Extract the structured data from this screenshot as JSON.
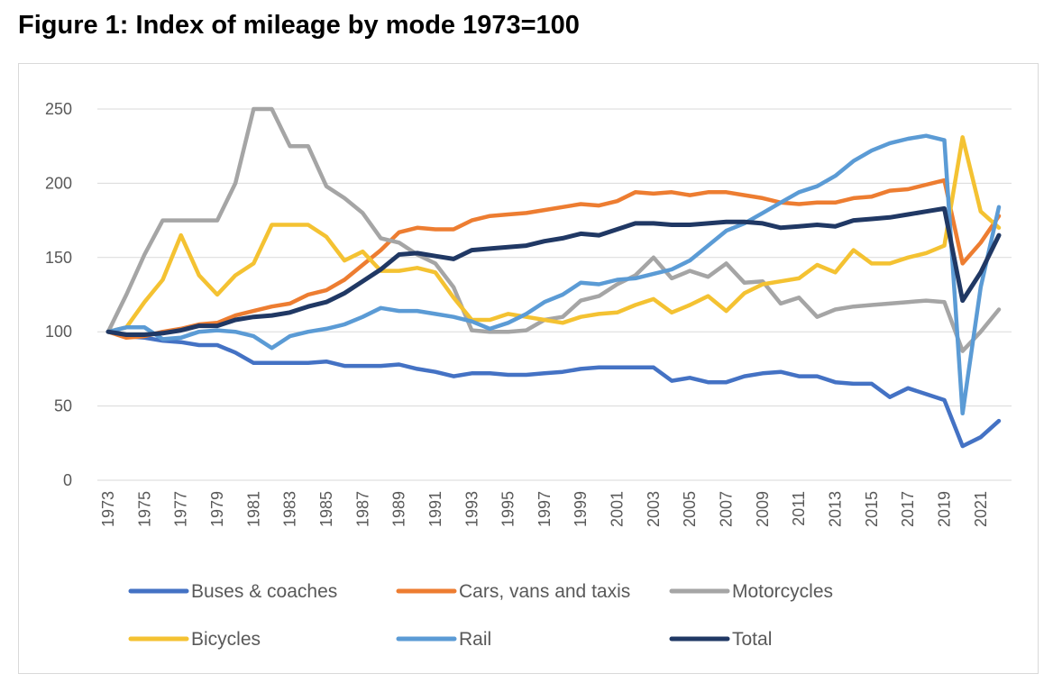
{
  "chart_data": {
    "type": "line",
    "title": "Figure 1: Index of mileage by mode 1973=100",
    "xlabel": "",
    "ylabel": "",
    "ylim": [
      0,
      250
    ],
    "yticks": [
      0,
      50,
      100,
      150,
      200,
      250
    ],
    "grid": "horizontal",
    "legend_position": "bottom",
    "x": [
      1973,
      1974,
      1975,
      1976,
      1977,
      1978,
      1979,
      1980,
      1981,
      1982,
      1983,
      1984,
      1985,
      1986,
      1987,
      1988,
      1989,
      1990,
      1991,
      1992,
      1993,
      1994,
      1995,
      1996,
      1997,
      1998,
      1999,
      2000,
      2001,
      2002,
      2003,
      2004,
      2005,
      2006,
      2007,
      2008,
      2009,
      2010,
      2011,
      2012,
      2013,
      2014,
      2015,
      2016,
      2017,
      2018,
      2019,
      2020,
      2021,
      2022
    ],
    "xticks": [
      "1973",
      "1975",
      "1977",
      "1979",
      "1981",
      "1983",
      "1985",
      "1987",
      "1989",
      "1991",
      "1993",
      "1995",
      "1997",
      "1999",
      "2001",
      "2003",
      "2005",
      "2007",
      "2009",
      "2011",
      "2013",
      "2015",
      "2017",
      "2019",
      "2021"
    ],
    "series": [
      {
        "name": "Buses & coaches",
        "color": "#4472C4",
        "values": [
          100,
          97,
          96,
          94,
          93,
          91,
          91,
          86,
          79,
          79,
          79,
          79,
          80,
          77,
          77,
          77,
          78,
          75,
          73,
          70,
          72,
          72,
          71,
          71,
          72,
          73,
          75,
          76,
          76,
          76,
          76,
          67,
          69,
          66,
          66,
          70,
          72,
          73,
          70,
          70,
          66,
          65,
          65,
          56,
          62,
          58,
          54,
          23,
          29,
          40
        ]
      },
      {
        "name": "Cars, vans and taxis",
        "color": "#ED7D31",
        "values": [
          100,
          96,
          97,
          100,
          102,
          105,
          106,
          111,
          114,
          117,
          119,
          125,
          128,
          135,
          145,
          155,
          167,
          170,
          169,
          169,
          175,
          178,
          179,
          180,
          182,
          184,
          186,
          185,
          188,
          194,
          193,
          194,
          192,
          194,
          194,
          192,
          190,
          187,
          186,
          187,
          187,
          190,
          191,
          195,
          196,
          199,
          202,
          146,
          160,
          178
        ]
      },
      {
        "name": "Motorcycles",
        "color": "#A5A5A5",
        "values": [
          100,
          125,
          152,
          175,
          175,
          175,
          175,
          200,
          250,
          250,
          225,
          225,
          198,
          190,
          180,
          163,
          160,
          152,
          146,
          130,
          101,
          100,
          100,
          101,
          108,
          110,
          121,
          124,
          132,
          138,
          150,
          136,
          141,
          137,
          146,
          133,
          134,
          119,
          123,
          110,
          115,
          117,
          118,
          119,
          120,
          121,
          120,
          87,
          100,
          115
        ]
      },
      {
        "name": "Bicycles",
        "color": "#F4C232",
        "values": [
          100,
          103,
          120,
          135,
          165,
          138,
          125,
          138,
          146,
          172,
          172,
          172,
          164,
          148,
          154,
          141,
          141,
          143,
          140,
          123,
          108,
          108,
          112,
          110,
          108,
          106,
          110,
          112,
          113,
          118,
          122,
          113,
          118,
          124,
          114,
          126,
          132,
          134,
          136,
          145,
          140,
          155,
          146,
          146,
          150,
          153,
          158,
          231,
          181,
          170
        ]
      },
      {
        "name": "Rail",
        "color": "#5B9BD5",
        "values": [
          100,
          103,
          103,
          95,
          96,
          100,
          101,
          100,
          97,
          89,
          97,
          100,
          102,
          105,
          110,
          116,
          114,
          114,
          112,
          110,
          107,
          102,
          106,
          112,
          120,
          125,
          133,
          132,
          135,
          136,
          139,
          142,
          148,
          158,
          168,
          173,
          180,
          187,
          194,
          198,
          205,
          215,
          222,
          227,
          230,
          232,
          229,
          45,
          130,
          184
        ]
      },
      {
        "name": "Total",
        "color": "#203864",
        "values": [
          100,
          98,
          98,
          99,
          101,
          104,
          104,
          108,
          110,
          111,
          113,
          117,
          120,
          126,
          134,
          142,
          152,
          153,
          151,
          149,
          155,
          156,
          157,
          158,
          161,
          163,
          166,
          165,
          169,
          173,
          173,
          172,
          172,
          173,
          174,
          174,
          173,
          170,
          171,
          172,
          171,
          175,
          176,
          177,
          179,
          181,
          183,
          121,
          140,
          165
        ]
      }
    ]
  }
}
